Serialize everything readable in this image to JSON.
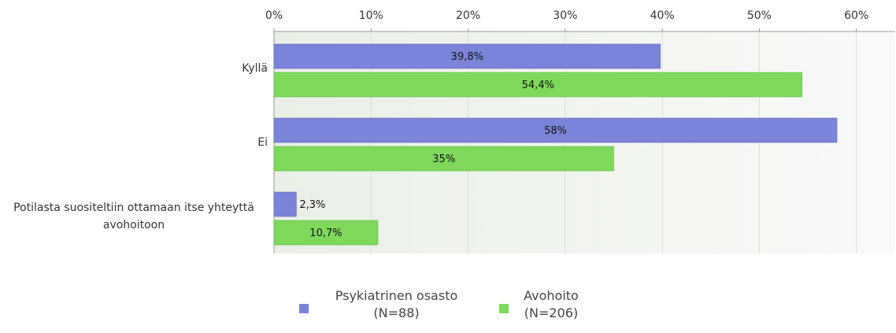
{
  "chart_data": {
    "type": "hbar",
    "categories": [
      "Kyllä",
      "Ei",
      "Potilasta suositeltiin ottamaan itse yhteyttä avohoitoon"
    ],
    "series": [
      {
        "name": "Psykiatrinen osasto (N=88)",
        "color": "#7b84d8",
        "values": [
          39.8,
          58,
          2.3
        ],
        "value_labels": [
          "39,8%",
          "58%",
          "2,3%"
        ]
      },
      {
        "name": "Avohoito (N=206)",
        "color": "#7fd85c",
        "values": [
          54.4,
          35,
          10.7
        ],
        "value_labels": [
          "54,4%",
          "35%",
          "10,7%"
        ]
      }
    ],
    "xlim": [
      0,
      64
    ],
    "xticks": [
      {
        "value": 0,
        "label": "0%"
      },
      {
        "value": 10,
        "label": "10%"
      },
      {
        "value": 20,
        "label": "20%"
      },
      {
        "value": 30,
        "label": "30%"
      },
      {
        "value": 40,
        "label": "40%"
      },
      {
        "value": 50,
        "label": "50%"
      },
      {
        "value": 60,
        "label": "60%"
      }
    ],
    "grid": true,
    "legend": "bottom"
  }
}
